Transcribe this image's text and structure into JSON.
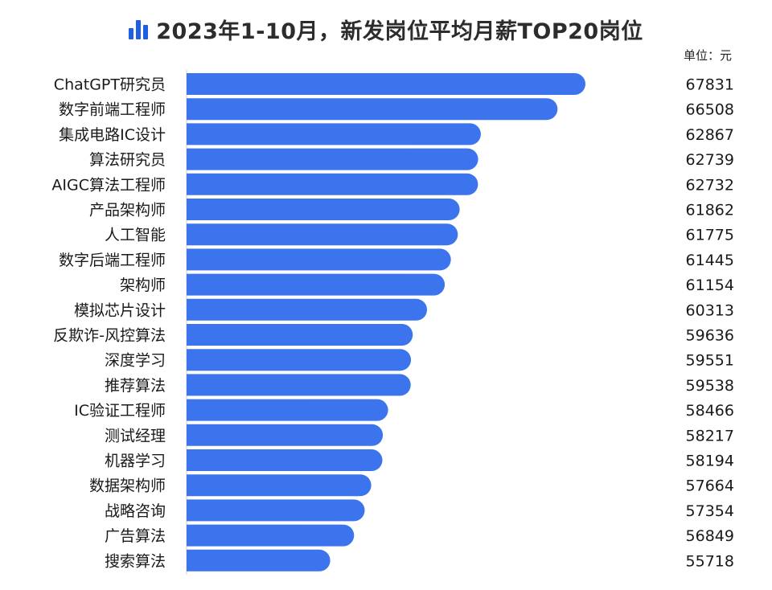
{
  "title": "2023年1-10月，新发岗位平均月薪TOP20岗位",
  "unit_label": "单位：元",
  "title_icon": "bar-chart-icon",
  "colors": {
    "bar": "#3b74ec",
    "icon": "#1f5fe0"
  },
  "chart_data": {
    "type": "bar",
    "orientation": "horizontal",
    "title": "2023年1-10月，新发岗位平均月薪TOP20岗位",
    "unit": "元",
    "categories": [
      "ChatGPT研究员",
      "数字前端工程师",
      "集成电路IC设计",
      "算法研究员",
      "AIGC算法工程师",
      "产品架构师",
      "人工智能",
      "数字后端工程师",
      "架构师",
      "模拟芯片设计",
      "反欺诈-风控算法",
      "深度学习",
      "推荐算法",
      "IC验证工程师",
      "测试经理",
      "机器学习",
      "数据架构师",
      "战略咨询",
      "广告算法",
      "搜索算法"
    ],
    "values": [
      67831,
      66508,
      62867,
      62739,
      62732,
      61862,
      61775,
      61445,
      61154,
      60313,
      59636,
      59551,
      59538,
      58466,
      58217,
      58194,
      57664,
      57354,
      56849,
      55718
    ],
    "grid": false,
    "legend": false
  }
}
